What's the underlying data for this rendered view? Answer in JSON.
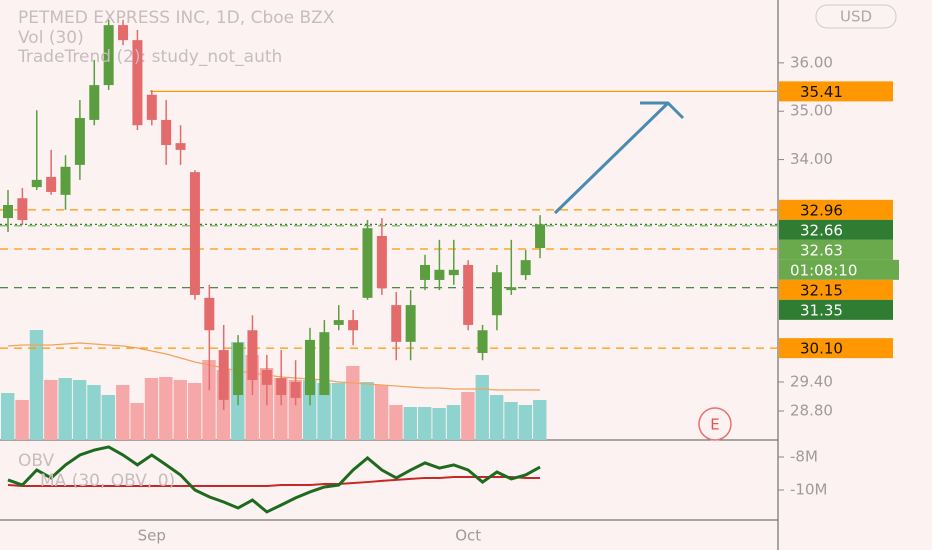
{
  "chart_data": {
    "type": "candlestick",
    "title": "PETMED EXPRESS INC, 1D, Cboe BZX",
    "currency": "USD",
    "indicator_label": "TradeTrend (2): study_not_auth",
    "categories": [
      null,
      null,
      null,
      null,
      null,
      null,
      null,
      null,
      null,
      null,
      "Sep",
      null,
      null,
      null,
      null,
      null,
      null,
      null,
      null,
      null,
      null,
      null,
      null,
      null,
      null,
      null,
      null,
      null,
      null,
      null,
      null,
      null,
      "Oct",
      null,
      null,
      null,
      null,
      null
    ],
    "open": [
      32.79,
      33.2,
      33.43,
      33.64,
      33.27,
      33.89,
      34.82,
      35.54,
      36.78,
      36.47,
      35.34,
      34.82,
      34.34,
      33.74,
      31.14,
      30.06,
      29.13,
      30.47,
      29.65,
      29.48,
      29.4,
      29.13,
      29.13,
      30.58,
      30.68,
      31.14,
      32.42,
      30.99,
      30.23,
      31.51,
      31.51,
      31.61,
      31.82,
      30.0,
      30.78,
      31.3,
      31.61,
      32.17
    ],
    "high": [
      33.37,
      33.41,
      35.02,
      34.2,
      34.09,
      35.23,
      36.06,
      36.89,
      36.89,
      36.68,
      35.44,
      35.23,
      34.71,
      33.78,
      31.41,
      30.58,
      30.37,
      30.78,
      29.96,
      30.06,
      29.85,
      30.52,
      30.68,
      30.99,
      30.89,
      32.75,
      32.79,
      31.26,
      31.3,
      32.03,
      32.34,
      32.34,
      31.92,
      30.58,
      31.82,
      32.34,
      32.13,
      32.85
    ],
    "low": [
      32.5,
      32.65,
      33.37,
      33.27,
      32.96,
      33.58,
      34.71,
      35.44,
      36.37,
      34.61,
      34.71,
      33.89,
      33.89,
      31.1,
      29.23,
      28.82,
      28.92,
      29.13,
      28.92,
      28.92,
      28.92,
      28.92,
      29.13,
      30.47,
      30.16,
      31.1,
      31.2,
      29.85,
      29.85,
      31.3,
      31.3,
      31.41,
      30.47,
      29.85,
      30.47,
      31.2,
      31.51,
      31.96
    ],
    "close": [
      33.06,
      32.75,
      33.58,
      33.33,
      33.85,
      34.86,
      35.54,
      36.78,
      36.47,
      34.71,
      34.82,
      34.3,
      34.2,
      31.2,
      30.47,
      29.03,
      30.21,
      29.44,
      29.34,
      29.13,
      29.07,
      30.27,
      30.43,
      30.68,
      30.47,
      32.58,
      31.34,
      30.23,
      30.99,
      31.82,
      31.72,
      31.72,
      30.58,
      30.47,
      31.67,
      31.36,
      31.92,
      32.66
    ],
    "up_color": "#5b9e3f",
    "down_color": "#e36b6b",
    "ylim": [
      28.2,
      37.3
    ],
    "yticks": [
      {
        "value": 36,
        "label": "36.00"
      },
      {
        "value": 35,
        "label": "35.00"
      },
      {
        "value": 34,
        "label": "34.00"
      },
      {
        "value": 29.4,
        "label": "29.40"
      },
      {
        "value": 28.8,
        "label": "28.80"
      }
    ],
    "levels": [
      {
        "value": 35.41,
        "label": "35.41",
        "color": "#ff9800",
        "style": "solid"
      },
      {
        "value": 32.96,
        "label": "32.96",
        "color": "#ff9800",
        "style": "dashed"
      },
      {
        "value": 32.66,
        "label": "32.66",
        "color": "#2e7d32",
        "style": "dotted"
      },
      {
        "value": 32.63,
        "label": "32.63",
        "color": "#6aaa4c",
        "style": "dashed",
        "countdown": "01:08:10"
      },
      {
        "value": 32.15,
        "label": "32.15",
        "color": "#ff9800",
        "style": "dashed"
      },
      {
        "value": 31.35,
        "label": "31.35",
        "color": "#2e7d32",
        "style": "dashed"
      },
      {
        "value": 30.1,
        "label": "30.10",
        "color": "#ff9800",
        "style": "dashed"
      }
    ],
    "volume": {
      "label": "Vol (30)",
      "vlim": [
        0,
        440
      ],
      "values": [
        47,
        40,
        110,
        60,
        62,
        60,
        55,
        45,
        55,
        37,
        62,
        63,
        60,
        57,
        80,
        70,
        98,
        85,
        72,
        62,
        60,
        60,
        57,
        57,
        74,
        58,
        55,
        35,
        33,
        33,
        32,
        35,
        48,
        65,
        45,
        38,
        35,
        40
      ],
      "ma": [
        94,
        95,
        95,
        95,
        96,
        97,
        96,
        95,
        94,
        92,
        89,
        86,
        82,
        78,
        75,
        72,
        69,
        67,
        65,
        63,
        62,
        61,
        60,
        58,
        57,
        56,
        55,
        54,
        53,
        52,
        52,
        51,
        51,
        51,
        50,
        50,
        50,
        50
      ],
      "up_color": "#8fd3cf",
      "down_color": "#f6a8a8",
      "ma_color": "#f2a35e"
    },
    "earnings_marker": "E",
    "obv": {
      "label": "OBV",
      "ma_label": "MA (30, OBV, 0)",
      "values": [
        -9.39,
        -9.7,
        -8.79,
        -9.27,
        -8.48,
        -7.88,
        -7.58,
        -7.39,
        -7.88,
        -8.48,
        -7.88,
        -8.48,
        -9.09,
        -10.0,
        -10.42,
        -10.73,
        -11.09,
        -10.61,
        -11.33,
        -10.91,
        -10.48,
        -10.12,
        -9.82,
        -9.7,
        -8.79,
        -8.06,
        -8.79,
        -9.27,
        -8.79,
        -8.36,
        -8.67,
        -8.48,
        -8.79,
        -9.52,
        -8.91,
        -9.33,
        -9.09,
        -8.61
      ],
      "ma": [
        -9.7,
        -9.76,
        -9.76,
        -9.76,
        -9.76,
        -9.76,
        -9.76,
        -9.76,
        -9.76,
        -9.76,
        -9.76,
        -9.76,
        -9.76,
        -9.76,
        -9.76,
        -9.76,
        -9.76,
        -9.76,
        -9.76,
        -9.7,
        -9.7,
        -9.7,
        -9.64,
        -9.64,
        -9.58,
        -9.52,
        -9.45,
        -9.39,
        -9.33,
        -9.27,
        -9.27,
        -9.21,
        -9.21,
        -9.21,
        -9.21,
        -9.21,
        -9.27,
        -9.27
      ],
      "color": "#1e6b1e",
      "ma_color": "#c62828",
      "ylim": [
        -11.82,
        -6.97
      ],
      "yticks": [
        {
          "value": -8,
          "label": "-8M"
        },
        {
          "value": -10,
          "label": "-10M"
        }
      ]
    }
  }
}
